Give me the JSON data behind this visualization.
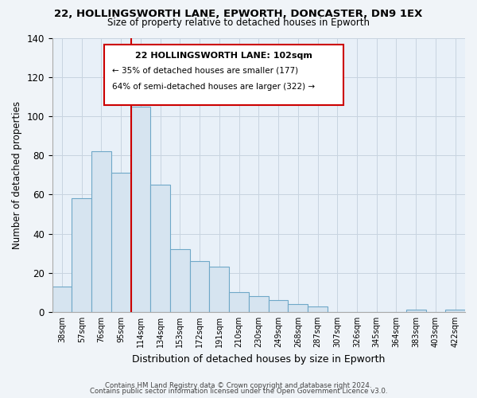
{
  "title": "22, HOLLINGSWORTH LANE, EPWORTH, DONCASTER, DN9 1EX",
  "subtitle": "Size of property relative to detached houses in Epworth",
  "xlabel": "Distribution of detached houses by size in Epworth",
  "ylabel": "Number of detached properties",
  "categories": [
    "38sqm",
    "57sqm",
    "76sqm",
    "95sqm",
    "114sqm",
    "134sqm",
    "153sqm",
    "172sqm",
    "191sqm",
    "210sqm",
    "230sqm",
    "249sqm",
    "268sqm",
    "287sqm",
    "307sqm",
    "326sqm",
    "345sqm",
    "364sqm",
    "383sqm",
    "403sqm",
    "422sqm"
  ],
  "values": [
    13,
    58,
    82,
    71,
    105,
    65,
    32,
    26,
    23,
    10,
    8,
    6,
    4,
    3,
    0,
    0,
    0,
    0,
    1,
    0,
    1
  ],
  "bar_fill_color": "#d6e4f0",
  "bar_edge_color": "#6fa8c8",
  "ylim": [
    0,
    140
  ],
  "yticks": [
    0,
    20,
    40,
    60,
    80,
    100,
    120,
    140
  ],
  "property_line_x": 3.5,
  "property_line_color": "#cc0000",
  "annotation_title": "22 HOLLINGSWORTH LANE: 102sqm",
  "annotation_line1": "← 35% of detached houses are smaller (177)",
  "annotation_line2": "64% of semi-detached houses are larger (322) →",
  "annotation_box_color": "#ffffff",
  "annotation_box_edge": "#cc0000",
  "footer1": "Contains HM Land Registry data © Crown copyright and database right 2024.",
  "footer2": "Contains public sector information licensed under the Open Government Licence v3.0.",
  "background_color": "#f0f4f8",
  "plot_bg_color": "#e8f0f8",
  "grid_color": "#c8d4e0"
}
